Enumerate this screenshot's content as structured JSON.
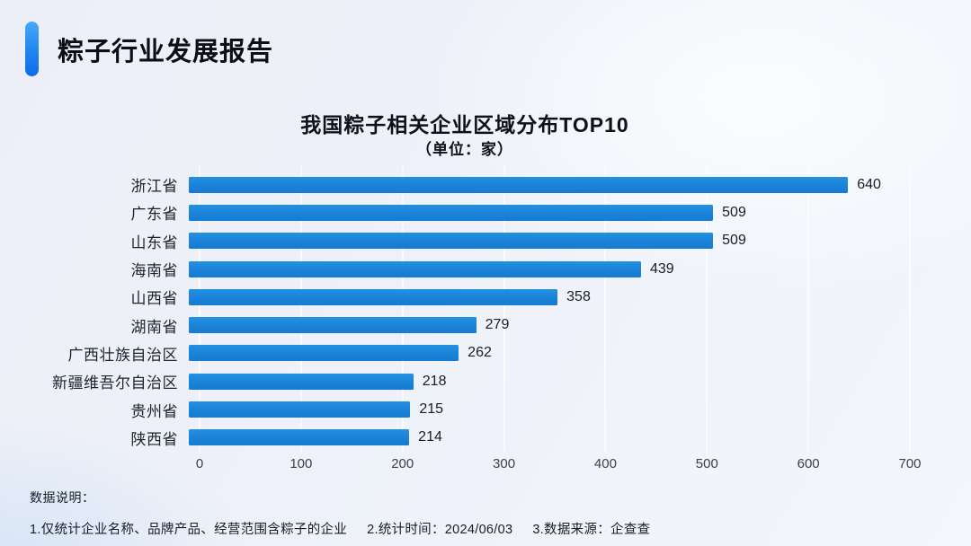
{
  "header": {
    "title": "粽子行业发展报告"
  },
  "chart_data": {
    "type": "bar",
    "orientation": "horizontal",
    "title": "我国粽子相关企业区域分布TOP10",
    "subtitle": "（单位：家）",
    "categories": [
      "浙江省",
      "广东省",
      "山东省",
      "海南省",
      "山西省",
      "湖南省",
      "广西壮族自治区",
      "新疆维吾尔自治区",
      "贵州省",
      "陕西省"
    ],
    "values": [
      640,
      509,
      509,
      439,
      358,
      279,
      262,
      218,
      215,
      214
    ],
    "xlim": [
      0,
      700
    ],
    "x_ticks": [
      0,
      100,
      200,
      300,
      400,
      500,
      600,
      700
    ],
    "grid": true,
    "legend": "none",
    "bar_color": "#1b82d8"
  },
  "footer": {
    "label": "数据说明：",
    "notes": [
      "1.仅统计企业名称、品牌产品、经营范围含粽子的企业",
      "2.统计时间：2024/06/03",
      "3.数据来源：企查查"
    ]
  }
}
